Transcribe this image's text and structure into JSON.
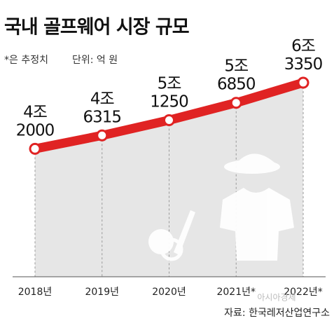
{
  "chart_data": {
    "type": "line",
    "title": "국내 골프웨어 시장 규모",
    "note": "*은 추정치",
    "unit": "단위: 억 원",
    "categories": [
      "2018년",
      "2019년",
      "2020년",
      "2021년*",
      "2022년*"
    ],
    "values": [
      42000,
      46315,
      51250,
      56850,
      63350
    ],
    "value_labels": [
      "4조\n2000",
      "4조\n6315",
      "5조\n1250",
      "5조\n6850",
      "6조\n3350"
    ],
    "color": "#e02323",
    "area_color": "#e6e6e6",
    "source": "자료: 한국레저산업연구소"
  },
  "watermark": "아시아경제"
}
